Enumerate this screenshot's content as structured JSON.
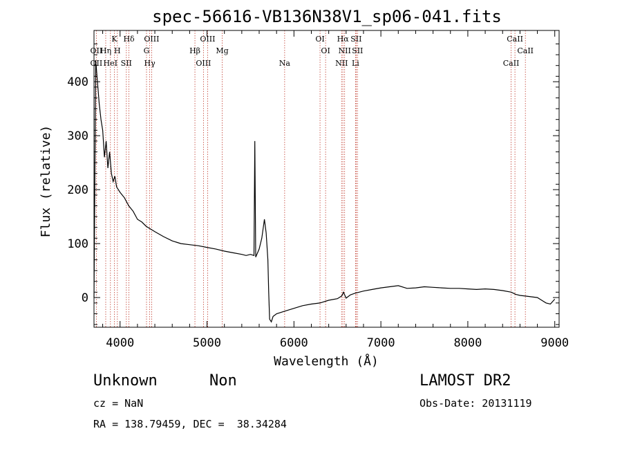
{
  "chart_data": {
    "type": "line",
    "title": "spec-56616-VB136N38V1_sp06-041.fits",
    "xlabel": "Wavelength (Å)",
    "ylabel": "Flux (relative)",
    "xlim": [
      3700,
      9050
    ],
    "ylim": [
      -55,
      495
    ],
    "xticks": [
      4000,
      5000,
      6000,
      7000,
      8000,
      9000
    ],
    "yticks": [
      0,
      100,
      200,
      300,
      400
    ],
    "grid": false,
    "series": [
      {
        "x": [
          3700,
          3720,
          3740,
          3760,
          3780,
          3800,
          3820,
          3840,
          3860,
          3880,
          3900,
          3920,
          3940,
          3960,
          3980,
          4000,
          4050,
          4100,
          4150,
          4200,
          4250,
          4300,
          4400,
          4500,
          4600,
          4700,
          4800,
          4900,
          5000,
          5100,
          5200,
          5300,
          5400,
          5450,
          5500,
          5540,
          5550,
          5560,
          5600,
          5630,
          5660,
          5680,
          5700,
          5710,
          5720,
          5740,
          5760,
          5800,
          5900,
          6000,
          6100,
          6200,
          6300,
          6400,
          6500,
          6550,
          6570,
          6600,
          6650,
          6700,
          6800,
          6900,
          7000,
          7100,
          7200,
          7300,
          7400,
          7500,
          7600,
          7700,
          7800,
          7900,
          8000,
          8100,
          8200,
          8300,
          8400,
          8500,
          8550,
          8600,
          8700,
          8800,
          8850,
          8900,
          8950,
          9000
        ],
        "values": [
          0,
          440,
          400,
          360,
          330,
          310,
          260,
          290,
          240,
          270,
          230,
          215,
          225,
          205,
          200,
          195,
          185,
          170,
          160,
          145,
          140,
          132,
          122,
          113,
          105,
          100,
          98,
          96,
          93,
          90,
          86,
          83,
          80,
          78,
          80,
          78,
          290,
          75,
          90,
          110,
          145,
          120,
          70,
          10,
          -40,
          -45,
          -35,
          -30,
          -25,
          -20,
          -15,
          -12,
          -10,
          -5,
          -2,
          3,
          10,
          -1,
          5,
          8,
          12,
          15,
          18,
          20,
          22,
          17,
          18,
          20,
          19,
          18,
          17,
          17,
          16,
          15,
          16,
          15,
          13,
          10,
          6,
          4,
          2,
          0,
          -5,
          -10,
          -12,
          -3
        ],
        "color": "#000000"
      }
    ],
    "spectral_lines": [
      {
        "wavelength": 3727,
        "labels": [
          "OII",
          "OII"
        ]
      },
      {
        "wavelength": 3835,
        "labels": [
          "Hη"
        ]
      },
      {
        "wavelength": 3889,
        "labels": [
          "HeI"
        ]
      },
      {
        "wavelength": 3934,
        "labels": [
          "K"
        ]
      },
      {
        "wavelength": 3969,
        "labels": [
          "H"
        ]
      },
      {
        "wavelength": 4072,
        "labels": [
          "SII"
        ]
      },
      {
        "wavelength": 4102,
        "labels": [
          "Hδ"
        ]
      },
      {
        "wavelength": 4304,
        "labels": [
          "G"
        ]
      },
      {
        "wavelength": 4341,
        "labels": [
          "Hγ"
        ]
      },
      {
        "wavelength": 4363,
        "labels": [
          "OIII"
        ]
      },
      {
        "wavelength": 4861,
        "labels": [
          "Hβ"
        ]
      },
      {
        "wavelength": 4959,
        "labels": [
          "OIII"
        ]
      },
      {
        "wavelength": 5007,
        "labels": [
          "OIII"
        ]
      },
      {
        "wavelength": 5175,
        "labels": [
          "Mg"
        ]
      },
      {
        "wavelength": 5893,
        "labels": [
          "Na"
        ]
      },
      {
        "wavelength": 6300,
        "labels": [
          "OI"
        ]
      },
      {
        "wavelength": 6364,
        "labels": [
          "OI"
        ]
      },
      {
        "wavelength": 6548,
        "labels": [
          "NII"
        ]
      },
      {
        "wavelength": 6563,
        "labels": [
          "Hα"
        ]
      },
      {
        "wavelength": 6583,
        "labels": [
          "NII"
        ]
      },
      {
        "wavelength": 6708,
        "labels": [
          "Li"
        ]
      },
      {
        "wavelength": 6716,
        "labels": [
          "SII"
        ]
      },
      {
        "wavelength": 6731,
        "labels": [
          "SII"
        ]
      },
      {
        "wavelength": 8498,
        "labels": [
          "CaII"
        ]
      },
      {
        "wavelength": 8542,
        "labels": [
          "CaII"
        ]
      },
      {
        "wavelength": 8662,
        "labels": [
          "CaII"
        ]
      }
    ]
  },
  "info": {
    "object_class": "Unknown",
    "object_subclass": "Non",
    "cz": "cz = NaN",
    "radec": "RA = 138.79459, DEC =  38.34284",
    "survey": "LAMOST DR2",
    "obs_date": "Obs-Date: 20131119"
  }
}
